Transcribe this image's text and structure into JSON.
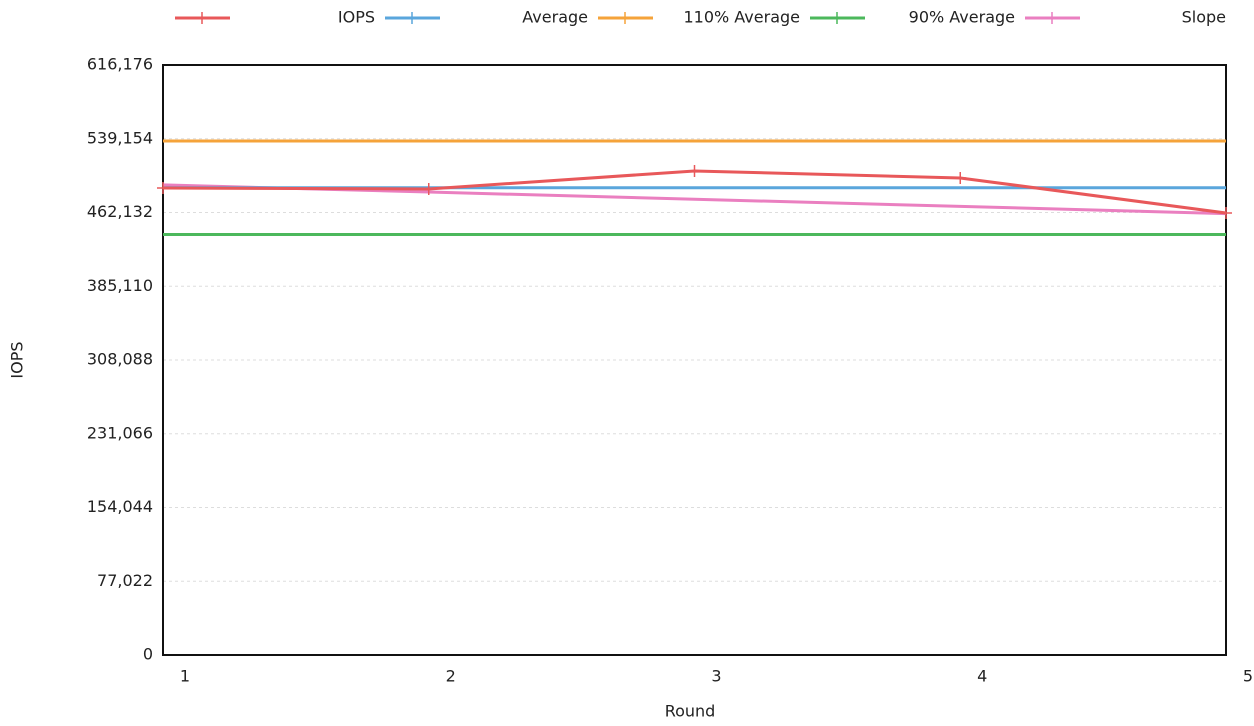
{
  "chart_data": {
    "type": "line",
    "x_label": "Round",
    "y_label": "IOPS",
    "x": [
      1,
      2,
      3,
      4,
      5
    ],
    "xlim": [
      1,
      5
    ],
    "xticks": [
      1,
      2,
      3,
      4,
      5
    ],
    "ylim": [
      0,
      616176
    ],
    "yticks": [
      0,
      {
        "value": 77022,
        "label": "77,022"
      },
      {
        "value": 154044,
        "label": "154,044"
      },
      {
        "value": 231066,
        "label": "231,066"
      },
      {
        "value": 308088,
        "label": "308,088"
      },
      {
        "value": 385110,
        "label": "385,110"
      },
      {
        "value": 462132,
        "label": "462,132"
      },
      {
        "value": 539154,
        "label": "539,154"
      },
      {
        "value": 616176,
        "label": "616,176"
      }
    ],
    "grid": true,
    "series": [
      {
        "name": "IOPS",
        "color": "#e8585a",
        "values": [
          487700,
          486700,
          505500,
          498200,
          461600
        ]
      },
      {
        "name": "Average",
        "color": "#5aa6dc",
        "values": [
          488000,
          488000,
          488000,
          488000,
          488000
        ]
      },
      {
        "name": "110% Average",
        "color": "#f5a33a",
        "values": [
          536800,
          536800,
          536800,
          536800,
          536800
        ]
      },
      {
        "name": "90% Average",
        "color": "#4cb85c",
        "values": [
          439200,
          439200,
          439200,
          439200,
          439200
        ]
      },
      {
        "name": "Slope",
        "color": "#ea7fc0",
        "values": [
          491000,
          483500,
          476000,
          468500,
          461000
        ]
      }
    ]
  }
}
